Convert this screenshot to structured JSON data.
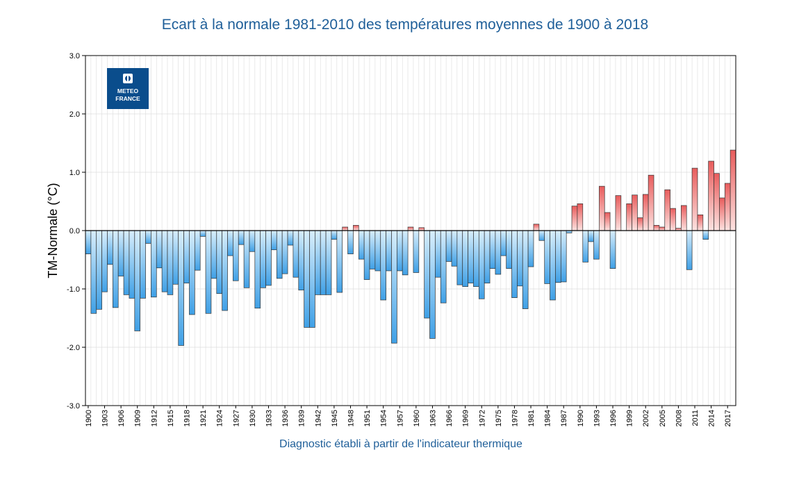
{
  "logo": {
    "line1": "METEO",
    "line2": "FRANCE",
    "color": "#0a4d8c"
  },
  "colors": {
    "neg_top": "#d8eefb",
    "neg_bottom": "#3fa0e6",
    "pos_top": "#fde3e1",
    "pos_bottom": "#e85c5c",
    "title": "#1f5f99",
    "grid": "#dcdcdc"
  },
  "chart_data": {
    "type": "bar",
    "title": "Ecart à la normale 1981-2010 des températures moyennes de 1900 à 2018",
    "xlabel": "Diagnostic établi à partir de l'indicateur thermique",
    "ylabel": "TM-Normale (°C)",
    "ylim": [
      -3.0,
      3.0
    ],
    "yticks": [
      -3.0,
      -2.0,
      -1.0,
      0.0,
      1.0,
      2.0,
      3.0
    ],
    "ytick_labels": [
      "-3.0",
      "-2.0",
      "-1.0",
      "0.0",
      "1.0",
      "2.0",
      "3.0"
    ],
    "xtick_labels": [
      "1900",
      "1903",
      "1906",
      "1909",
      "1912",
      "1915",
      "1918",
      "1921",
      "1924",
      "1927",
      "1930",
      "1933",
      "1936",
      "1939",
      "1942",
      "1945",
      "1948",
      "1951",
      "1954",
      "1957",
      "1960",
      "1963",
      "1966",
      "1969",
      "1972",
      "1975",
      "1978",
      "1981",
      "1984",
      "1987",
      "1990",
      "1993",
      "1996",
      "1999",
      "2002",
      "2005",
      "2008",
      "2011",
      "2014",
      "2017"
    ],
    "year_start": 1900,
    "year_end": 2018,
    "values": [
      -0.4,
      -1.42,
      -1.35,
      -1.05,
      -0.58,
      -1.32,
      -0.78,
      -1.1,
      -1.16,
      -1.72,
      -1.16,
      -0.22,
      -1.14,
      -0.64,
      -1.05,
      -1.1,
      -0.92,
      -1.97,
      -0.9,
      -1.44,
      -0.68,
      -0.1,
      -1.42,
      -0.82,
      -1.08,
      -1.37,
      -0.43,
      -0.86,
      -0.24,
      -0.98,
      -0.36,
      -1.33,
      -0.98,
      -0.94,
      -0.33,
      -0.82,
      -0.74,
      -0.25,
      -0.8,
      -1.02,
      -1.66,
      -1.66,
      -1.1,
      -1.1,
      -1.1,
      -0.15,
      -1.06,
      0.06,
      -0.4,
      0.09,
      -0.49,
      -0.84,
      -0.66,
      -0.69,
      -1.19,
      -0.69,
      -1.93,
      -0.69,
      -0.76,
      0.06,
      -0.72,
      0.05,
      -1.5,
      -1.85,
      -0.8,
      -1.24,
      -0.53,
      -0.61,
      -0.93,
      -0.96,
      -0.9,
      -0.96,
      -1.17,
      -0.9,
      -0.65,
      -0.75,
      -0.43,
      -0.65,
      -1.15,
      -0.95,
      -1.34,
      -0.62,
      0.11,
      -0.17,
      -0.91,
      -1.19,
      -0.89,
      -0.88,
      -0.04,
      0.42,
      0.46,
      -0.54,
      -0.19,
      -0.49,
      0.76,
      0.31,
      -0.65,
      0.6,
      0.0,
      0.46,
      0.61,
      0.22,
      0.62,
      0.95,
      0.09,
      0.06,
      0.7,
      0.38,
      0.04,
      0.43,
      -0.67,
      1.07,
      0.27,
      -0.15,
      1.19,
      0.98,
      0.56,
      0.81,
      1.38
    ]
  }
}
